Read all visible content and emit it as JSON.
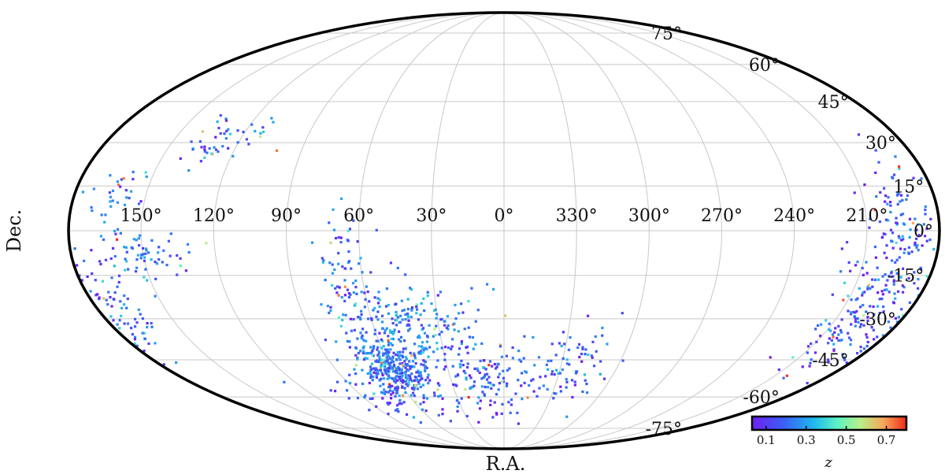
{
  "chart_data": {
    "type": "scatter",
    "projection": "mollweide",
    "xlabel": "R.A.",
    "ylabel": "Dec.",
    "ra_tick_labels": [
      "150°",
      "120°",
      "90°",
      "60°",
      "30°",
      "0°",
      "330°",
      "300°",
      "270°",
      "240°",
      "210°"
    ],
    "ra_tick_values": [
      150,
      120,
      90,
      60,
      30,
      0,
      330,
      300,
      270,
      240,
      210
    ],
    "dec_tick_labels": [
      "-75°",
      "-60°",
      "-45°",
      "-30°",
      "-15°",
      "0°",
      "15°",
      "30°",
      "45°",
      "60°",
      "75°"
    ],
    "dec_tick_values": [
      -75,
      -60,
      -45,
      -30,
      -15,
      0,
      15,
      30,
      45,
      60,
      75
    ],
    "grid": true,
    "colorbar": {
      "label": "z",
      "range": [
        0.03,
        0.8
      ],
      "tick_labels": [
        "0.1",
        "0.3",
        "0.5",
        "0.7"
      ],
      "tick_values": [
        0.1,
        0.3,
        0.5,
        0.7
      ],
      "colormap": "rainbow",
      "placement": "bottom-right"
    },
    "clusters": [
      {
        "ra": 59,
        "dec": -49,
        "sra": 8,
        "sdec": 5,
        "n": 240,
        "zmean": 0.2
      },
      {
        "ra": 52,
        "dec": -35,
        "sra": 12,
        "sdec": 9,
        "n": 200,
        "zmean": 0.24
      },
      {
        "ra": 66,
        "dec": -17,
        "sra": 6,
        "sdec": 13,
        "n": 80,
        "zmean": 0.2
      },
      {
        "ra": 70,
        "dec": -60,
        "sra": 16,
        "sdec": 5,
        "n": 70,
        "zmean": 0.18
      },
      {
        "ra": 10,
        "dec": -52,
        "sra": 18,
        "sdec": 7,
        "n": 150,
        "zmean": 0.17
      },
      {
        "ra": 25,
        "dec": -33,
        "sra": 12,
        "sdec": 6,
        "n": 60,
        "zmean": 0.22
      },
      {
        "ra": 322,
        "dec": -48,
        "sra": 10,
        "sdec": 7,
        "n": 70,
        "zmean": 0.16
      },
      {
        "ra": 200,
        "dec": -28,
        "sra": 9,
        "sdec": 12,
        "n": 150,
        "zmean": 0.15
      },
      {
        "ra": 196,
        "dec": 2,
        "sra": 8,
        "sdec": 12,
        "n": 110,
        "zmean": 0.17
      },
      {
        "ra": 176,
        "dec": -32,
        "sra": 7,
        "sdec": 7,
        "n": 50,
        "zmean": 0.2
      },
      {
        "ra": 150,
        "dec": -8,
        "sra": 9,
        "sdec": 5,
        "n": 70,
        "zmean": 0.2
      },
      {
        "ra": 162,
        "dec": 12,
        "sra": 7,
        "sdec": 5,
        "n": 30,
        "zmean": 0.22
      },
      {
        "ra": 125,
        "dec": 30,
        "sra": 12,
        "sdec": 5,
        "n": 50,
        "zmean": 0.2
      },
      {
        "ra": 170,
        "dec": -18,
        "sra": 8,
        "sdec": 9,
        "n": 35,
        "zmean": 0.2
      }
    ]
  }
}
